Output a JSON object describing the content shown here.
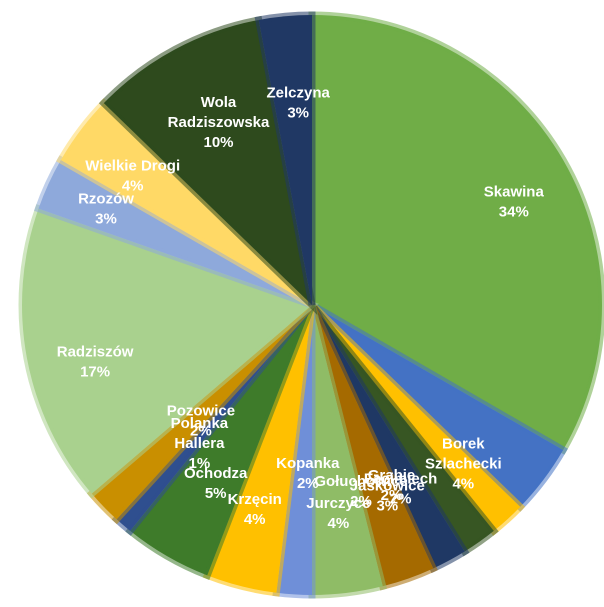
{
  "chart_data": {
    "type": "pie",
    "title": "",
    "slices": [
      {
        "name": "Skawina",
        "label": "34%",
        "value": 34,
        "color": "#70AD47",
        "dx": 16,
        "dy": 4
      },
      {
        "name": "Borek Szlachecki",
        "label": "4%",
        "value": 4,
        "color": "#4472C4",
        "dx": -20,
        "dy": 29
      },
      {
        "name": "Facimiech",
        "label": "2%",
        "value": 2,
        "color": "#FFC000",
        "dx": -56,
        "dy": 25
      },
      {
        "name": "Gołuchowice",
        "label": "2%",
        "value": 2,
        "color": "#375623",
        "dx": -75,
        "dy": 11
      },
      {
        "name": "Grabie",
        "label": "2%",
        "value": 2,
        "color": "#1F3864",
        "dx": -22,
        "dy": -9
      },
      {
        "name": "Jaśkowice",
        "label": "3%",
        "value": 3,
        "color": "#A56A00",
        "dx": 4,
        "dy": -12
      },
      {
        "name": "Jurczyce",
        "label": "4%",
        "value": 4,
        "color": "#8FBC66",
        "dx": 0,
        "dy": -5
      },
      {
        "name": "Kopanka",
        "label": "2%",
        "value": 2,
        "color": "#6F8FD8",
        "dx": 9,
        "dy": -46
      },
      {
        "name": "Krzęcin",
        "label": "4%",
        "value": 4,
        "color": "#FFC000",
        "dx": -5,
        "dy": -4
      },
      {
        "name": "Ochodza",
        "label": "5%",
        "value": 5,
        "color": "#3E7B2A",
        "dx": 11,
        "dy": -8
      },
      {
        "name": "Polanka Hallera",
        "label": "1%",
        "value": 1,
        "color": "#2F4F8F",
        "dx": 27,
        "dy": -25
      },
      {
        "name": "Pozowice",
        "label": "2%",
        "value": 2,
        "color": "#C98F00",
        "dx": 43,
        "dy": -34
      },
      {
        "name": "Radziszów",
        "label": "17%",
        "value": 17,
        "color": "#A9D18E",
        "dx": -6,
        "dy": 17
      },
      {
        "name": "Rzozów",
        "label": "3%",
        "value": 3,
        "color": "#8EA9DB",
        "dx": -11,
        "dy": -7
      },
      {
        "name": "Wielkie Drogi",
        "label": "4%",
        "value": 4,
        "color": "#FFD966",
        "dx": -8,
        "dy": 0
      },
      {
        "name": "Wola Radziszowska",
        "label": "10%",
        "value": 10,
        "color": "#2E4A1D",
        "dx": 8,
        "dy": 6
      },
      {
        "name": "Zelczyna",
        "label": "3%",
        "value": 3,
        "color": "#203864",
        "dx": 6,
        "dy": 11
      }
    ]
  }
}
